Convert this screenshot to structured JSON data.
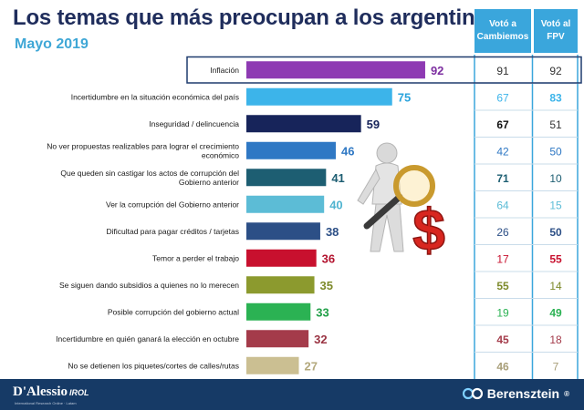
{
  "header": {
    "title": "Los temas que más preocupan a los argentinos",
    "subtitle": "Mayo 2019"
  },
  "table": {
    "col_cambiemos": "Votó a Cambiemos",
    "col_fpv": "Votó al FPV"
  },
  "footer": {
    "brand_left": "D'Alessio",
    "brand_left_suffix": "IROL",
    "brand_left_sub": "International Research Online · Latam",
    "brand_right": "Berensztein",
    "brand_right_mark": "®"
  },
  "colors": {
    "title": "#1f2d5c",
    "subtitle": "#3fa7d6",
    "table_header": "#3aa6dc",
    "footer": "#163a66",
    "highlight_border": "#1f3b6e"
  },
  "chart_data": {
    "type": "bar",
    "orientation": "horizontal",
    "title": "Los temas que más preocupan a los argentinos",
    "subtitle": "Mayo 2019",
    "xlim": [
      0,
      100
    ],
    "highlighted_index": 0,
    "categories": [
      [
        "Inflación"
      ],
      [
        "Incertidumbre en la situación económica del país"
      ],
      [
        "Inseguridad / delincuencia"
      ],
      [
        "No ver propuestas realizables para lograr el crecimiento",
        "económico"
      ],
      [
        "Que queden sin castigar los actos de corrupción del",
        "Gobierno anterior"
      ],
      [
        "Ver la corrupción del Gobierno anterior"
      ],
      [
        "Dificultad para pagar créditos / tarjetas"
      ],
      [
        "Temor a perder el trabajo"
      ],
      [
        "Se siguen dando subsidios a quienes no lo merecen"
      ],
      [
        "Posible corrupción del gobierno actual"
      ],
      [
        "Incertidumbre en quién ganará la elección en octubre"
      ],
      [
        "No se detienen los piquetes/cortes de calles/rutas"
      ]
    ],
    "values": [
      92,
      75,
      59,
      46,
      41,
      40,
      38,
      36,
      35,
      33,
      32,
      27
    ],
    "bar_colors": [
      "#8e3ab3",
      "#3cb4ea",
      "#17245a",
      "#2f78c4",
      "#1d5e72",
      "#5cbcd6",
      "#2c4f86",
      "#c8102e",
      "#8c9a2e",
      "#2bb253",
      "#a43b4a",
      "#cbbf92"
    ],
    "value_colors": [
      "#7d2fa0",
      "#2aa3dc",
      "#17245a",
      "#2f78c4",
      "#1d5e72",
      "#4fb4d0",
      "#2c4f86",
      "#b3122e",
      "#7d8a2a",
      "#22a049",
      "#9a3443",
      "#b3a87c"
    ],
    "series": [
      {
        "name": "Votó a Cambiemos",
        "values": [
          91,
          67,
          67,
          42,
          71,
          64,
          26,
          17,
          55,
          19,
          45,
          46
        ],
        "colors": [
          "#333333",
          "#3cb4ea",
          "#111111",
          "#2f78c4",
          "#1d5e72",
          "#5cbcd6",
          "#2c4f86",
          "#c8102e",
          "#7d8a2a",
          "#2bb253",
          "#a43b4a",
          "#a89e78"
        ],
        "bold": [
          false,
          false,
          true,
          false,
          true,
          false,
          false,
          false,
          true,
          false,
          true,
          true
        ]
      },
      {
        "name": "Votó al FPV",
        "values": [
          92,
          83,
          51,
          50,
          10,
          15,
          50,
          55,
          14,
          49,
          18,
          7
        ],
        "colors": [
          "#333333",
          "#3cb4ea",
          "#333333",
          "#2f78c4",
          "#1d5e72",
          "#5cbcd6",
          "#2c4f86",
          "#c8102e",
          "#7d8a2a",
          "#2bb253",
          "#a43b4a",
          "#a89e78"
        ],
        "bold": [
          false,
          true,
          false,
          false,
          false,
          false,
          true,
          true,
          false,
          true,
          false,
          false
        ]
      }
    ]
  }
}
